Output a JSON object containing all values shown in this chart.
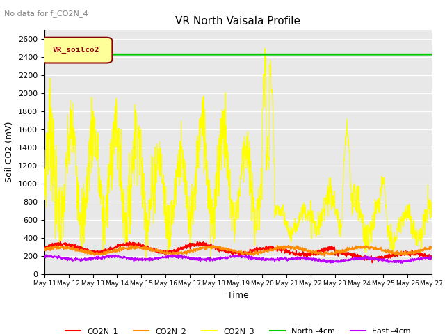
{
  "title": "VR North Vaisala Profile",
  "subtitle": "No data for f_CO2N_4",
  "xlabel": "Time",
  "ylabel": "Soil CO2 (mV)",
  "ylim": [
    0,
    2700
  ],
  "yticks": [
    0,
    200,
    400,
    600,
    800,
    1000,
    1200,
    1400,
    1600,
    1800,
    2000,
    2200,
    2400,
    2600
  ],
  "bg_color": "#e8e8e8",
  "legend_box_label": "VR_soilco2",
  "series_colors": {
    "CO2N_1": "#ff0000",
    "CO2N_2": "#ff8c00",
    "CO2N_3": "#ffff00",
    "North_4cm": "#00cc00",
    "East_4cm": "#bb00ff"
  },
  "north_value": 2430
}
